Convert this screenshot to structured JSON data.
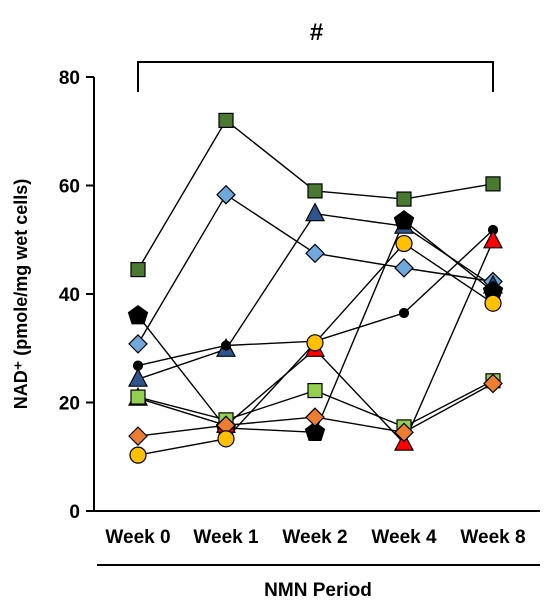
{
  "chart_data": {
    "type": "line",
    "title": "",
    "ylabel": "NAD⁺ (pmole/mg wet cells)",
    "xlabel": "NMN Period",
    "categories": [
      "Week 0",
      "Week 1",
      "Week 2",
      "Week 4",
      "Week 8"
    ],
    "ylim": [
      0,
      80
    ],
    "yticks": [
      "0",
      "20",
      "40",
      "60",
      "80"
    ],
    "grid": false,
    "legend": "none",
    "significance": {
      "label": "#",
      "from": "Week 0",
      "to": "Week 8"
    },
    "series": [
      {
        "marker": "square",
        "color": "#4a7a32",
        "values": [
          44.5,
          72,
          59,
          57.5,
          60.3
        ]
      },
      {
        "marker": "diamond",
        "color": "#6fa8dc",
        "values": [
          30.8,
          58.3,
          47.5,
          44.8,
          42.3
        ]
      },
      {
        "marker": "triangle",
        "color": "#2e5590",
        "values": [
          24.3,
          29.8,
          54.8,
          52.5,
          41.5
        ]
      },
      {
        "marker": "circle-small",
        "color": "#000000",
        "values": [
          26.8,
          30.5,
          31.3,
          36.5,
          51.8
        ]
      },
      {
        "marker": "pentagon",
        "color": "#000000",
        "values": [
          36,
          15.3,
          14.5,
          53.5,
          40.5
        ]
      },
      {
        "marker": "triangle",
        "color": "#ff0000",
        "values": [
          20.8,
          15.8,
          29.8,
          12.5,
          49.8
        ]
      },
      {
        "marker": "square",
        "color": "#92d050",
        "values": [
          21,
          16.8,
          22.2,
          15.5,
          24
        ]
      },
      {
        "marker": "diamond",
        "color": "#ed7d31",
        "values": [
          13.8,
          15.8,
          17.3,
          14.5,
          23.5
        ]
      },
      {
        "marker": "circle",
        "color": "#ffc000",
        "values": [
          10.3,
          13.3,
          31,
          49.3,
          38.3
        ]
      }
    ]
  }
}
